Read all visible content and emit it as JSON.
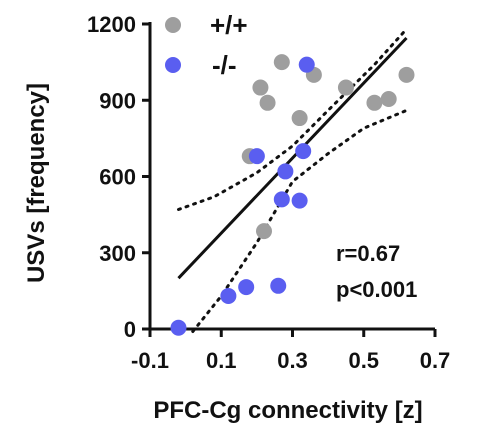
{
  "chart_data": {
    "type": "scatter",
    "xlabel": "PFC-Cg connectivity [z]",
    "ylabel": "USVs [frequency]",
    "xlim": [
      -0.1,
      0.7
    ],
    "ylim": [
      0,
      1200
    ],
    "xticks": [
      "-0.1",
      "0.1",
      "0.3",
      "0.5",
      "0.7"
    ],
    "yticks": [
      "0",
      "300",
      "600",
      "900",
      "1200"
    ],
    "series": [
      {
        "name": "+/+",
        "color": "#9e9e9e",
        "points": [
          {
            "x": 0.18,
            "y": 680
          },
          {
            "x": 0.22,
            "y": 385
          },
          {
            "x": 0.21,
            "y": 950
          },
          {
            "x": 0.23,
            "y": 890
          },
          {
            "x": 0.27,
            "y": 1050
          },
          {
            "x": 0.32,
            "y": 830
          },
          {
            "x": 0.36,
            "y": 1000
          },
          {
            "x": 0.45,
            "y": 950
          },
          {
            "x": 0.53,
            "y": 890
          },
          {
            "x": 0.57,
            "y": 905
          },
          {
            "x": 0.62,
            "y": 1000
          }
        ]
      },
      {
        "name": "-/-",
        "color": "#5a5ef0",
        "points": [
          {
            "x": -0.02,
            "y": 5
          },
          {
            "x": 0.12,
            "y": 130
          },
          {
            "x": 0.17,
            "y": 165
          },
          {
            "x": 0.2,
            "y": 680
          },
          {
            "x": 0.26,
            "y": 170
          },
          {
            "x": 0.27,
            "y": 510
          },
          {
            "x": 0.28,
            "y": 620
          },
          {
            "x": 0.32,
            "y": 505
          },
          {
            "x": 0.33,
            "y": 700
          },
          {
            "x": 0.34,
            "y": 1040
          }
        ]
      }
    ],
    "regression": {
      "x": [
        -0.02,
        0.62
      ],
      "y": [
        200,
        1145
      ]
    },
    "ci_upper": {
      "x": [
        -0.02,
        0.08,
        0.2,
        0.3,
        0.4,
        0.53,
        0.62
      ],
      "y": [
        470,
        520,
        615,
        720,
        860,
        1040,
        1180
      ]
    },
    "ci_lower": {
      "x": [
        0.02,
        0.1,
        0.2,
        0.3,
        0.4,
        0.5,
        0.62
      ],
      "y": [
        -10,
        130,
        340,
        580,
        690,
        790,
        860
      ]
    },
    "legend": {
      "position": "top-left",
      "items": [
        {
          "label": "+/+",
          "color": "#9e9e9e"
        },
        {
          "label": "-/-",
          "color": "#5a5ef0"
        }
      ]
    },
    "annotations": [
      "r=0.67",
      "p<0.001"
    ],
    "grid": false
  }
}
